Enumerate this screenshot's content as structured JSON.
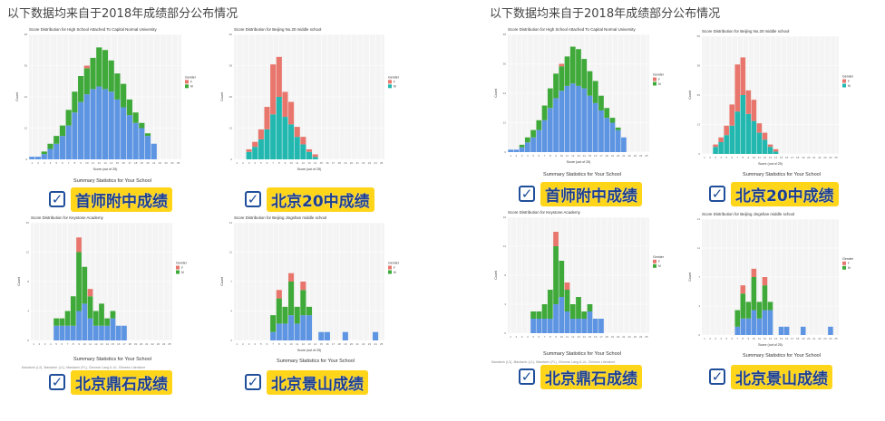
{
  "page_title": "以下数据均来自于2018年成绩部分公布情况",
  "summary_label": "Summary Statistics for Your School",
  "legend": {
    "title": "Gender",
    "items": [
      "F",
      "M"
    ]
  },
  "colors": {
    "F": "#e8766d",
    "M": "#3fa93a",
    "blue": "#5e95e3",
    "teal": "#22b8b0",
    "grid": "#ebebeb",
    "panel": "#f4f4f4"
  },
  "badges": [
    "首师附中成绩",
    "北京20中成绩",
    "北京鼎石成绩",
    "北京景山成绩"
  ],
  "tiny_strip": "Mandarin (L2), Mandarin (L1), Mandarin (FL), Chinese Lang & Lit, Chinese Literature",
  "chart_data": [
    {
      "type": "bar",
      "title": "Score Distribution for High School Attached To Capital Normal University",
      "xlabel": "Score (out of 25)",
      "ylabel": "Count",
      "x": [
        1,
        2,
        3,
        4,
        5,
        6,
        7,
        8,
        9,
        10,
        11,
        12,
        13,
        14,
        15,
        16,
        17,
        18,
        19,
        20,
        21,
        22,
        23,
        24,
        25
      ],
      "series": [
        {
          "name": "blue",
          "values": [
            1,
            1,
            2,
            4,
            6,
            9,
            13,
            18,
            22,
            25,
            27,
            28,
            27,
            26,
            23,
            20,
            17,
            14,
            12,
            9,
            6,
            0,
            0,
            0,
            0
          ]
        },
        {
          "name": "M",
          "values": [
            0,
            0,
            1,
            2,
            3,
            4,
            6,
            8,
            10,
            10,
            12,
            15,
            15,
            12,
            10,
            9,
            6,
            4,
            2,
            1,
            0,
            0,
            0,
            0,
            0
          ]
        },
        {
          "name": "F",
          "values": [
            0,
            0,
            0,
            0,
            0,
            0,
            0,
            0,
            0,
            1,
            0,
            0,
            0,
            0,
            0,
            0,
            0,
            0,
            0,
            0,
            0,
            0,
            0,
            0,
            0
          ]
        }
      ],
      "ylim": [
        0,
        48
      ]
    },
    {
      "type": "bar",
      "title": "Score Distribution for Beijing No.20 middle school",
      "xlabel": "Score (out of 25)",
      "ylabel": "Count",
      "x": [
        1,
        2,
        3,
        4,
        5,
        6,
        7,
        8,
        9,
        10,
        11,
        12,
        13,
        14,
        15,
        16,
        17,
        18,
        19,
        20,
        21,
        22,
        23,
        24,
        25
      ],
      "series": [
        {
          "name": "teal",
          "values": [
            0,
            0,
            3,
            5,
            8,
            12,
            18,
            25,
            17,
            14,
            9,
            6,
            3,
            1,
            0,
            0,
            0,
            0,
            0,
            0,
            0,
            0,
            0,
            0,
            0
          ]
        },
        {
          "name": "F",
          "values": [
            0,
            0,
            1,
            2,
            4,
            9,
            20,
            16,
            10,
            9,
            4,
            3,
            1,
            1,
            0,
            0,
            0,
            0,
            0,
            0,
            0,
            0,
            0,
            0,
            0
          ]
        }
      ],
      "ylim": [
        0,
        50
      ]
    },
    {
      "type": "bar",
      "title": "Score Distribution for Keystone Academy",
      "xlabel": "",
      "ylabel": "Count",
      "x": [
        1,
        2,
        3,
        4,
        5,
        6,
        7,
        8,
        9,
        10,
        11,
        12,
        13,
        14,
        15,
        16,
        17,
        18,
        19,
        20,
        21,
        22,
        23,
        24,
        25
      ],
      "series": [
        {
          "name": "blue",
          "values": [
            0,
            0,
            0,
            0,
            2,
            2,
            2,
            2,
            4,
            5,
            3,
            2,
            2,
            2,
            3,
            2,
            2,
            0,
            0,
            0,
            0,
            0,
            0,
            0,
            0
          ]
        },
        {
          "name": "M",
          "values": [
            0,
            0,
            0,
            0,
            1,
            1,
            2,
            4,
            8,
            5,
            3,
            2,
            3,
            1,
            1,
            0,
            0,
            0,
            0,
            0,
            0,
            0,
            0,
            0,
            0
          ]
        },
        {
          "name": "F",
          "values": [
            0,
            0,
            0,
            0,
            0,
            0,
            0,
            0,
            2,
            0,
            1,
            0,
            0,
            0,
            0,
            0,
            0,
            0,
            0,
            0,
            0,
            0,
            0,
            0,
            0
          ]
        }
      ],
      "ylim": [
        0,
        16
      ]
    },
    {
      "type": "bar",
      "title": "Score Distribution for Beijing Jingshan middle school",
      "xlabel": "Score (out of 25)",
      "ylabel": "Count",
      "x": [
        1,
        2,
        3,
        4,
        5,
        6,
        7,
        8,
        9,
        10,
        11,
        12,
        13,
        14,
        15,
        16,
        17,
        18,
        19,
        20,
        21,
        22,
        23,
        24,
        25
      ],
      "series": [
        {
          "name": "blue",
          "values": [
            0,
            0,
            0,
            0,
            0,
            0,
            1,
            2,
            2,
            3,
            2,
            3,
            3,
            0,
            1,
            1,
            0,
            0,
            1,
            0,
            0,
            0,
            0,
            1,
            0
          ]
        },
        {
          "name": "M",
          "values": [
            0,
            0,
            0,
            0,
            0,
            0,
            2,
            3,
            2,
            4,
            2,
            3,
            1,
            0,
            0,
            0,
            0,
            0,
            0,
            0,
            0,
            0,
            0,
            0,
            0
          ]
        },
        {
          "name": "F",
          "values": [
            0,
            0,
            0,
            0,
            0,
            0,
            0,
            1,
            0,
            1,
            0,
            1,
            0,
            0,
            0,
            0,
            0,
            0,
            0,
            0,
            0,
            0,
            0,
            0,
            0
          ]
        }
      ],
      "ylim": [
        0,
        14
      ]
    }
  ]
}
